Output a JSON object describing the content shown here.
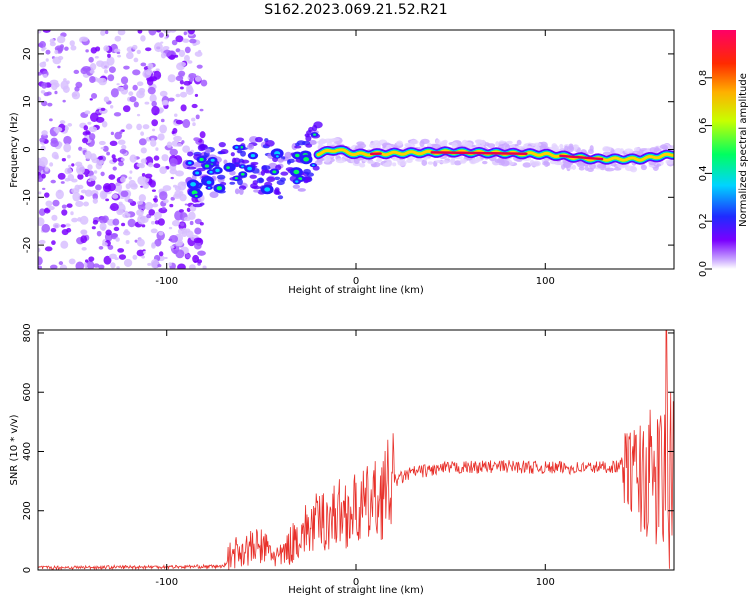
{
  "title": "S162.2023.069.21.52.R21",
  "chart_data": [
    {
      "type": "heatmap",
      "xlabel": "Height of straight line (km)",
      "ylabel": "Frequency (Hz)",
      "xlim": [
        -168,
        168
      ],
      "ylim": [
        -25,
        25
      ],
      "x_ticks": [
        -100,
        0,
        100
      ],
      "y_ticks": [
        -20,
        -10,
        0,
        10,
        20
      ],
      "colorbar": {
        "label": "Normalized spectral amplitude",
        "range": [
          0,
          1
        ],
        "ticks": [
          "0.0",
          "0.2",
          "0.4",
          "0.6",
          "0.8"
        ]
      },
      "ridge": [
        {
          "x": -88,
          "f": -7
        },
        {
          "x": -75,
          "f": -4
        },
        {
          "x": -60,
          "f": -3
        },
        {
          "x": -45,
          "f": -4
        },
        {
          "x": -35,
          "f": -5
        },
        {
          "x": -22,
          "f": -1
        },
        {
          "x": -10,
          "f": 0
        },
        {
          "x": 0,
          "f": -1
        },
        {
          "x": 50,
          "f": -0.5
        },
        {
          "x": 100,
          "f": -1
        },
        {
          "x": 125,
          "f": -2
        },
        {
          "x": 150,
          "f": -2
        },
        {
          "x": 168,
          "f": -1
        }
      ],
      "colors": {
        "noise": "#7a00ff",
        "core": "#e8004a"
      }
    },
    {
      "type": "line",
      "xlabel": "Height of straight line (km)",
      "ylabel": "SNR (10 * v/v)",
      "xlim": [
        -168,
        168
      ],
      "ylim": [
        0,
        810
      ],
      "x_ticks": [
        -100,
        0,
        100
      ],
      "y_ticks": [
        0,
        200,
        400,
        600,
        800
      ],
      "series": [
        {
          "color": "#e8302a",
          "envelope": [
            {
              "x": -168,
              "y": 8
            },
            {
              "x": -70,
              "y": 12
            },
            {
              "x": -65,
              "y": 60
            },
            {
              "x": -50,
              "y": 80
            },
            {
              "x": -40,
              "y": 40
            },
            {
              "x": -30,
              "y": 120
            },
            {
              "x": -20,
              "y": 160
            },
            {
              "x": -10,
              "y": 190
            },
            {
              "x": 0,
              "y": 200
            },
            {
              "x": 10,
              "y": 230
            },
            {
              "x": 20,
              "y": 300
            },
            {
              "x": 30,
              "y": 330
            },
            {
              "x": 50,
              "y": 345
            },
            {
              "x": 80,
              "y": 350
            },
            {
              "x": 100,
              "y": 345
            },
            {
              "x": 120,
              "y": 345
            },
            {
              "x": 140,
              "y": 350
            },
            {
              "x": 150,
              "y": 320
            },
            {
              "x": 160,
              "y": 300
            },
            {
              "x": 168,
              "y": 280
            }
          ],
          "peak": {
            "x": 164,
            "y": 810
          }
        }
      ]
    }
  ]
}
